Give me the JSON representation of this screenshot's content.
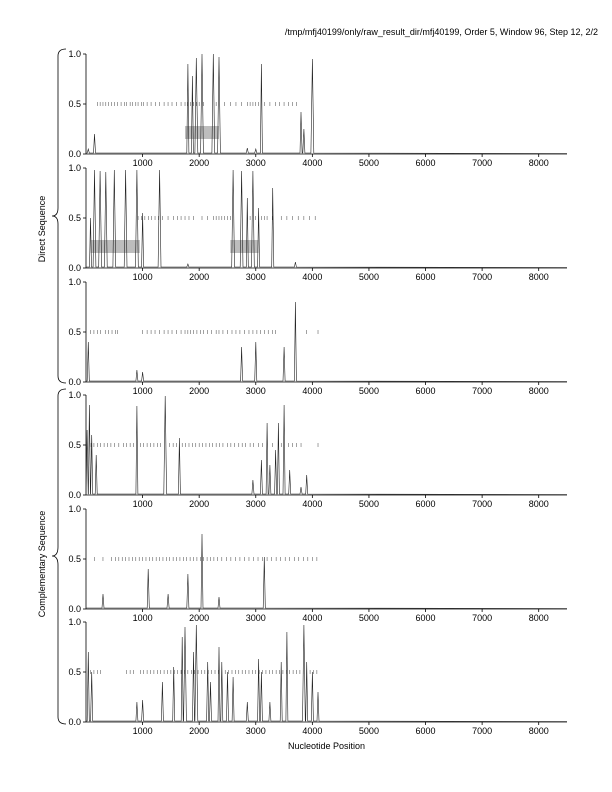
{
  "header": "/tmp/mfj40199/only/raw_result_dir/mfj40199, Order 5, Window 96, Step 12, 2/2",
  "group_labels": {
    "direct": "Direct Sequence",
    "complementary": "Complementary Sequence"
  },
  "chart_data": {
    "type": "line",
    "xlabel": "Nucleotide Position",
    "xlim": [
      0,
      8500
    ],
    "ylim": [
      0,
      1
    ],
    "x_ticks": [
      1000,
      2000,
      3000,
      4000,
      5000,
      6000,
      7000,
      8000
    ],
    "y_ticks": [
      0.0,
      0.5,
      1.0
    ],
    "y_tick_labels": [
      "0.0",
      "0.5",
      "1.0"
    ],
    "threshold": 0.5,
    "panels": [
      {
        "group": "Direct Sequence",
        "peaks": [
          [
            40,
            0.05
          ],
          [
            150,
            0.2
          ],
          [
            1800,
            0.9
          ],
          [
            1880,
            0.78
          ],
          [
            1950,
            0.96
          ],
          [
            2050,
            1.0
          ],
          [
            2250,
            1.0
          ],
          [
            2350,
            0.97
          ],
          [
            2850,
            0.06
          ],
          [
            3000,
            0.05
          ],
          [
            3100,
            0.9
          ],
          [
            3800,
            0.42
          ],
          [
            3850,
            0.25
          ],
          [
            4000,
            0.95
          ]
        ],
        "ticks": [
          200,
          250,
          300,
          350,
          400,
          450,
          500,
          560,
          620,
          680,
          720,
          780,
          820,
          880,
          920,
          980,
          1020,
          1080,
          1150,
          1230,
          1300,
          1380,
          1450,
          1520,
          1600,
          1680,
          1750,
          1800,
          1850,
          1900,
          1950,
          2000,
          2080,
          2300,
          2450,
          2550,
          2650,
          2750,
          2850,
          2900,
          2950,
          3000,
          3050,
          3150,
          3250,
          3350,
          3420,
          3500,
          3580,
          3650,
          3720
        ],
        "boxes": [
          [
            1750,
            2350
          ]
        ]
      },
      {
        "group": "Direct Sequence",
        "peaks": [
          [
            80,
            0.5
          ],
          [
            150,
            0.98
          ],
          [
            250,
            0.97
          ],
          [
            350,
            0.96
          ],
          [
            500,
            0.98
          ],
          [
            700,
            0.98
          ],
          [
            900,
            0.98
          ],
          [
            1000,
            0.55
          ],
          [
            1300,
            0.98
          ],
          [
            1800,
            0.04
          ],
          [
            2600,
            0.98
          ],
          [
            2750,
            0.97
          ],
          [
            2850,
            0.7
          ],
          [
            2950,
            0.97
          ],
          [
            3050,
            0.6
          ],
          [
            3300,
            0.8
          ],
          [
            3700,
            0.06
          ]
        ],
        "ticks": [
          920,
          980,
          1040,
          1100,
          1160,
          1220,
          1280,
          1350,
          1450,
          1550,
          1620,
          1680,
          1750,
          1820,
          1900,
          2050,
          2150,
          2250,
          2300,
          2350,
          2400,
          2450,
          2500,
          2550,
          2900,
          3000,
          3050,
          3100,
          3150,
          3200,
          3300,
          3450,
          3550,
          3650,
          3750,
          3850,
          3950,
          4050
        ],
        "boxes": [
          [
            80,
            950
          ],
          [
            2550,
            3050
          ]
        ]
      },
      {
        "group": "Direct Sequence",
        "peaks": [
          [
            40,
            0.4
          ],
          [
            900,
            0.12
          ],
          [
            1000,
            0.1
          ],
          [
            2750,
            0.35
          ],
          [
            3000,
            0.4
          ],
          [
            3500,
            0.35
          ],
          [
            3700,
            0.8
          ]
        ],
        "ticks": [
          80,
          140,
          200,
          260,
          340,
          400,
          460,
          520,
          560,
          1000,
          1080,
          1150,
          1220,
          1300,
          1380,
          1450,
          1520,
          1600,
          1680,
          1750,
          1800,
          1850,
          1900,
          1960,
          2020,
          2080,
          2150,
          2220,
          2300,
          2350,
          2420,
          2500,
          2580,
          2650,
          2720,
          2800,
          2880,
          2950,
          3020,
          3080,
          3150,
          3220,
          3300,
          3350,
          3900,
          4100
        ],
        "boxes": []
      },
      {
        "group": "Complementary Sequence",
        "peaks": [
          [
            20,
            0.65
          ],
          [
            60,
            0.9
          ],
          [
            100,
            0.6
          ],
          [
            180,
            0.4
          ],
          [
            900,
            0.89
          ],
          [
            1400,
            0.99
          ],
          [
            1650,
            0.57
          ],
          [
            2950,
            0.15
          ],
          [
            3100,
            0.35
          ],
          [
            3200,
            0.72
          ],
          [
            3250,
            0.3
          ],
          [
            3350,
            0.45
          ],
          [
            3400,
            0.72
          ],
          [
            3500,
            0.9
          ],
          [
            3600,
            0.25
          ],
          [
            3800,
            0.08
          ],
          [
            3900,
            0.2
          ]
        ],
        "ticks": [
          90,
          140,
          200,
          260,
          320,
          380,
          440,
          500,
          580,
          660,
          720,
          780,
          840,
          960,
          1020,
          1080,
          1140,
          1200,
          1260,
          1320,
          1480,
          1540,
          1600,
          1700,
          1760,
          1820,
          1880,
          1940,
          2000,
          2060,
          2120,
          2180,
          2240,
          2300,
          2360,
          2420,
          2500,
          2560,
          2620,
          2700,
          2760,
          2820,
          2900,
          2960,
          3050,
          3120,
          3300,
          3450,
          3580,
          3650,
          3720,
          3800,
          4100
        ],
        "boxes": []
      },
      {
        "group": "Complementary Sequence",
        "peaks": [
          [
            300,
            0.15
          ],
          [
            1100,
            0.4
          ],
          [
            1450,
            0.15
          ],
          [
            1800,
            0.35
          ],
          [
            2050,
            0.75
          ],
          [
            2350,
            0.12
          ],
          [
            3150,
            0.52
          ]
        ],
        "ticks": [
          150,
          300,
          450,
          520,
          580,
          640,
          700,
          760,
          820,
          880,
          940,
          1000,
          1060,
          1120,
          1180,
          1240,
          1300,
          1360,
          1420,
          1480,
          1540,
          1600,
          1660,
          1720,
          1780,
          1840,
          1900,
          1960,
          2020,
          2080,
          2140,
          2200,
          2260,
          2320,
          2400,
          2480,
          2560,
          2640,
          2720,
          2800,
          2880,
          2960,
          3040,
          3120,
          3200,
          3280,
          3360,
          3440,
          3520,
          3600,
          3680,
          3760,
          3840,
          3920,
          4000,
          4080
        ],
        "boxes": []
      },
      {
        "group": "Complementary Sequence",
        "peaks": [
          [
            40,
            0.7
          ],
          [
            100,
            0.5
          ],
          [
            900,
            0.2
          ],
          [
            1000,
            0.22
          ],
          [
            1350,
            0.4
          ],
          [
            1550,
            0.55
          ],
          [
            1700,
            0.85
          ],
          [
            1750,
            0.95
          ],
          [
            1900,
            0.7
          ],
          [
            1950,
            0.97
          ],
          [
            2150,
            0.6
          ],
          [
            2200,
            0.4
          ],
          [
            2350,
            0.75
          ],
          [
            2400,
            0.6
          ],
          [
            2500,
            0.5
          ],
          [
            2600,
            0.45
          ],
          [
            2850,
            0.2
          ],
          [
            3050,
            0.63
          ],
          [
            3100,
            0.5
          ],
          [
            3250,
            0.2
          ],
          [
            3450,
            0.6
          ],
          [
            3550,
            0.9
          ],
          [
            3850,
            0.97
          ],
          [
            3900,
            0.6
          ],
          [
            4000,
            0.5
          ],
          [
            4100,
            0.3
          ]
        ],
        "ticks": [
          80,
          140,
          200,
          260,
          720,
          780,
          840,
          960,
          1020,
          1080,
          1140,
          1200,
          1260,
          1320,
          1380,
          1440,
          1500,
          1560,
          1620,
          1680,
          1740,
          1800,
          1860,
          1920,
          1980,
          2040,
          2100,
          2160,
          2220,
          2280,
          2340,
          2400,
          2460,
          2520,
          2580,
          2640,
          2700,
          2760,
          2820,
          2880,
          2940,
          3000,
          3060,
          3120,
          3180,
          3240,
          3300,
          3360,
          3420,
          3480,
          3540,
          3600,
          3660,
          3720,
          3780,
          3840,
          3900,
          3960,
          4020,
          4080
        ],
        "boxes": []
      }
    ]
  }
}
